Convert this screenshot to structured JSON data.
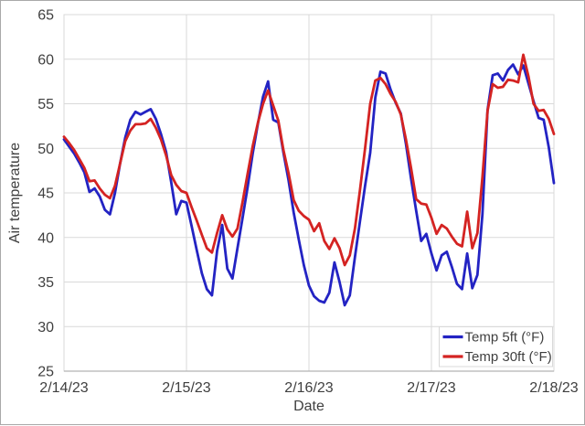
{
  "chart_data": {
    "type": "line",
    "title": "",
    "xlabel": "Date",
    "ylabel": "Air temperature",
    "x_tick_labels": [
      "2/14/23",
      "2/15/23",
      "2/16/23",
      "2/17/23",
      "2/18/23"
    ],
    "y_ticks": [
      25,
      30,
      35,
      40,
      45,
      50,
      55,
      60,
      65
    ],
    "ylim": [
      25,
      65
    ],
    "x_unit": "hours since 2/14/23 00:00, one point per hour",
    "x_hours_span": 96,
    "grid": true,
    "legend_position": "inside-bottom-right",
    "gridline_color": "#d9d9d9",
    "axis_line_color": "#b3b3b3",
    "text_color": "#3f3f3f",
    "series": [
      {
        "name": "Temp 5ft (°F)",
        "color": "#2323c3",
        "values": [
          51.0,
          50.2,
          49.4,
          48.4,
          47.3,
          45.1,
          45.5,
          44.6,
          43.1,
          42.6,
          45.0,
          48.3,
          51.2,
          53.2,
          54.1,
          53.8,
          54.1,
          54.4,
          53.3,
          51.6,
          49.6,
          46.2,
          42.6,
          44.1,
          43.9,
          41.3,
          38.6,
          36.0,
          34.2,
          33.5,
          38.5,
          41.4,
          36.5,
          35.4,
          38.8,
          42.2,
          45.7,
          49.5,
          52.8,
          55.8,
          57.5,
          53.2,
          52.9,
          49.5,
          46.4,
          42.8,
          39.8,
          36.9,
          34.6,
          33.4,
          32.9,
          32.7,
          33.8,
          37.2,
          35.0,
          32.4,
          33.5,
          37.8,
          41.8,
          45.8,
          49.5,
          55.7,
          58.6,
          58.4,
          56.6,
          55.1,
          53.9,
          50.5,
          46.6,
          43.0,
          39.6,
          40.4,
          38.2,
          36.3,
          38.0,
          38.4,
          36.7,
          34.8,
          34.2,
          38.2,
          34.3,
          35.8,
          42.6,
          54.3,
          58.2,
          58.4,
          57.6,
          58.8,
          59.4,
          58.3,
          59.3,
          57.3,
          55.3,
          53.4,
          53.2,
          50.1,
          46.1
        ]
      },
      {
        "name": "Temp 30ft (°F)",
        "color": "#d42322",
        "values": [
          51.3,
          50.6,
          49.8,
          48.8,
          47.8,
          46.3,
          46.4,
          45.5,
          44.8,
          44.4,
          45.8,
          48.3,
          50.8,
          52.0,
          52.7,
          52.7,
          52.8,
          53.3,
          52.3,
          51.0,
          49.2,
          47.0,
          45.9,
          45.2,
          45.0,
          43.4,
          41.9,
          40.3,
          38.8,
          38.3,
          40.5,
          42.5,
          40.9,
          40.1,
          41.0,
          44.0,
          47.2,
          50.3,
          52.9,
          55.0,
          56.5,
          54.8,
          53.1,
          49.8,
          47.2,
          44.2,
          43.0,
          42.4,
          42.0,
          40.7,
          41.6,
          39.6,
          38.7,
          39.9,
          38.8,
          36.9,
          38.0,
          41.0,
          45.3,
          50.0,
          55.0,
          57.6,
          57.9,
          57.2,
          56.1,
          55.2,
          53.8,
          51.0,
          47.8,
          44.3,
          43.8,
          43.7,
          42.2,
          40.4,
          41.4,
          41.0,
          40.1,
          39.3,
          39.0,
          42.9,
          38.8,
          40.5,
          46.8,
          54.2,
          57.2,
          56.8,
          56.9,
          57.7,
          57.6,
          57.4,
          60.5,
          58.1,
          55.0,
          54.2,
          54.3,
          53.3,
          51.6
        ]
      }
    ]
  }
}
